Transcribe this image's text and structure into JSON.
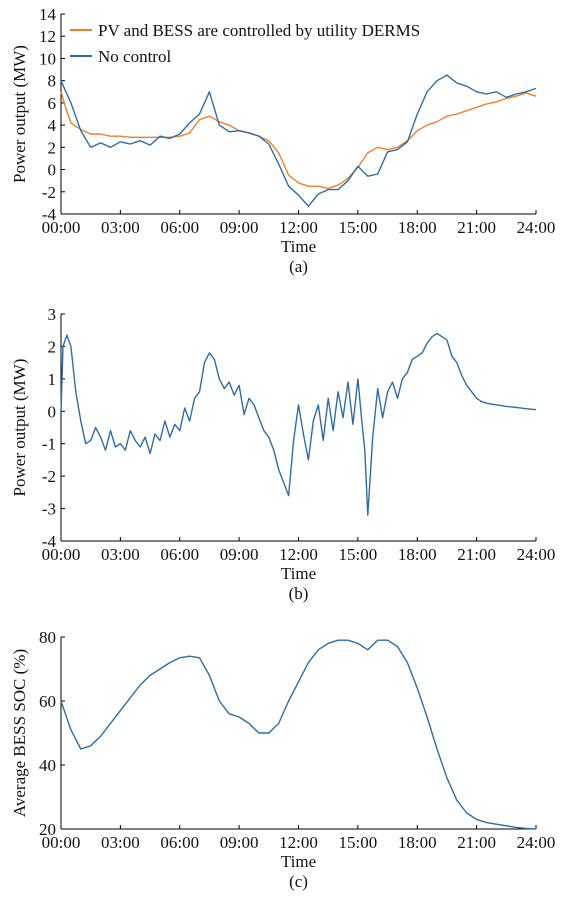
{
  "chart_data": [
    {
      "type": "line",
      "panel_label": "(a)",
      "xlabel": "Time",
      "ylabel": "Power output (MW)",
      "xlim": [
        0,
        24
      ],
      "ylim": [
        -4,
        14
      ],
      "xticks": [
        "00:00",
        "03:00",
        "06:00",
        "09:00",
        "12:00",
        "15:00",
        "18:00",
        "21:00",
        "24:00"
      ],
      "yticks": [
        "-4",
        "-2",
        "0",
        "2",
        "4",
        "6",
        "8",
        "10",
        "12",
        "14"
      ],
      "legend_position": "top-left",
      "grid": false,
      "series": [
        {
          "name": "PV and BESS are controlled by utility DERMS",
          "color": "#ee7f2d",
          "x": [
            0,
            0.25,
            0.5,
            1,
            1.5,
            2,
            2.5,
            3,
            3.5,
            4,
            4.5,
            5,
            5.5,
            6,
            6.5,
            7,
            7.5,
            8,
            8.5,
            9,
            9.5,
            10,
            10.5,
            11,
            11.5,
            12,
            12.5,
            13,
            13.5,
            14,
            14.5,
            15,
            15.5,
            16,
            16.5,
            17,
            17.5,
            18,
            18.5,
            19,
            19.5,
            20,
            20.5,
            21,
            21.5,
            22,
            22.5,
            23,
            23.5,
            24
          ],
          "values": [
            7.0,
            5.5,
            4.2,
            3.6,
            3.2,
            3.2,
            3.0,
            3.0,
            2.9,
            2.9,
            2.9,
            2.9,
            2.9,
            3.0,
            3.3,
            4.5,
            4.8,
            4.3,
            4.0,
            3.5,
            3.3,
            3.0,
            2.6,
            1.5,
            -0.5,
            -1.2,
            -1.5,
            -1.5,
            -1.7,
            -1.4,
            -0.8,
            0.2,
            1.5,
            2.0,
            1.8,
            2.0,
            2.6,
            3.5,
            4.0,
            4.3,
            4.8,
            5.0,
            5.3,
            5.6,
            5.9,
            6.1,
            6.4,
            6.6,
            6.9,
            6.6
          ]
        },
        {
          "name": "No control",
          "color": "#2e6da4",
          "x": [
            0,
            0.25,
            0.5,
            1,
            1.5,
            2,
            2.5,
            3,
            3.5,
            4,
            4.5,
            5,
            5.5,
            6,
            6.5,
            7,
            7.5,
            8,
            8.5,
            9,
            9.5,
            10,
            10.5,
            11,
            11.5,
            12,
            12.5,
            13,
            13.5,
            14,
            14.5,
            15,
            15.5,
            16,
            16.5,
            17,
            17.5,
            18,
            18.5,
            19,
            19.5,
            20,
            20.5,
            21,
            21.5,
            22,
            22.5,
            23,
            23.5,
            24
          ],
          "values": [
            8.0,
            7.0,
            6.0,
            3.5,
            2.0,
            2.4,
            2.0,
            2.5,
            2.3,
            2.6,
            2.2,
            3.0,
            2.8,
            3.2,
            4.2,
            5.0,
            7.0,
            4.0,
            3.4,
            3.5,
            3.3,
            3.0,
            2.3,
            0.5,
            -1.5,
            -2.3,
            -3.3,
            -2.2,
            -1.8,
            -1.8,
            -1.0,
            0.3,
            -0.6,
            -0.4,
            1.6,
            1.8,
            2.5,
            5.0,
            7.0,
            8.0,
            8.5,
            7.8,
            7.5,
            7.0,
            6.8,
            7.0,
            6.5,
            6.8,
            7.0,
            7.3
          ]
        }
      ]
    },
    {
      "type": "line",
      "panel_label": "(b)",
      "xlabel": "Time",
      "ylabel": "Power output (MW)",
      "xlim": [
        0,
        24
      ],
      "ylim": [
        -4,
        3
      ],
      "xticks": [
        "00:00",
        "03:00",
        "06:00",
        "09:00",
        "12:00",
        "15:00",
        "18:00",
        "21:00",
        "24:00"
      ],
      "yticks": [
        "-4",
        "-3",
        "-2",
        "-1",
        "0",
        "1",
        "2",
        "3"
      ],
      "grid": false,
      "series": [
        {
          "color": "#2e6da4",
          "x": [
            0,
            0.1,
            0.3,
            0.5,
            0.75,
            1,
            1.25,
            1.5,
            1.75,
            2,
            2.25,
            2.5,
            2.75,
            3,
            3.25,
            3.5,
            3.75,
            4,
            4.25,
            4.5,
            4.75,
            5,
            5.25,
            5.5,
            5.75,
            6,
            6.25,
            6.5,
            6.75,
            7,
            7.25,
            7.5,
            7.75,
            8,
            8.25,
            8.5,
            8.75,
            9,
            9.25,
            9.5,
            9.75,
            10,
            10.25,
            10.5,
            10.75,
            11,
            11.25,
            11.5,
            11.75,
            12,
            12.25,
            12.5,
            12.75,
            13,
            13.25,
            13.5,
            13.75,
            14,
            14.25,
            14.5,
            14.75,
            15,
            15.2,
            15.35,
            15.5,
            15.75,
            16,
            16.25,
            16.5,
            16.75,
            17,
            17.25,
            17.5,
            17.75,
            18,
            18.25,
            18.5,
            18.75,
            19,
            19.25,
            19.5,
            19.75,
            20,
            20.25,
            20.5,
            20.75,
            21,
            21.25,
            21.5,
            21.75,
            22,
            22.5,
            23,
            23.5,
            24
          ],
          "values": [
            0,
            2.0,
            2.35,
            2.0,
            0.6,
            -0.3,
            -1.0,
            -0.9,
            -0.5,
            -0.8,
            -1.2,
            -0.6,
            -1.1,
            -1.0,
            -1.2,
            -0.6,
            -0.9,
            -1.1,
            -0.8,
            -1.3,
            -0.7,
            -0.9,
            -0.3,
            -0.8,
            -0.4,
            -0.6,
            0.1,
            -0.3,
            0.4,
            0.6,
            1.5,
            1.8,
            1.6,
            1.0,
            0.7,
            0.9,
            0.5,
            0.8,
            -0.1,
            0.4,
            0.2,
            -0.2,
            -0.6,
            -0.8,
            -1.2,
            -1.8,
            -2.2,
            -2.6,
            -0.9,
            0.2,
            -0.7,
            -1.5,
            -0.3,
            0.2,
            -0.9,
            0.4,
            -0.6,
            0.6,
            -0.2,
            0.9,
            -0.4,
            1.0,
            -0.3,
            -1.2,
            -3.2,
            -0.8,
            0.7,
            -0.2,
            0.6,
            0.9,
            0.4,
            1.0,
            1.2,
            1.6,
            1.7,
            1.8,
            2.1,
            2.3,
            2.4,
            2.3,
            2.2,
            1.7,
            1.5,
            1.1,
            0.8,
            0.6,
            0.4,
            0.3,
            0.25,
            0.22,
            0.2,
            0.15,
            0.12,
            0.08,
            0.05
          ]
        }
      ]
    },
    {
      "type": "line",
      "panel_label": "(c)",
      "xlabel": "Time",
      "ylabel": "Average BESS SOC (%)",
      "xlim": [
        0,
        24
      ],
      "ylim": [
        20,
        80
      ],
      "xticks": [
        "00:00",
        "03:00",
        "06:00",
        "09:00",
        "12:00",
        "15:00",
        "18:00",
        "21:00",
        "24:00"
      ],
      "yticks": [
        "20",
        "40",
        "60",
        "80"
      ],
      "grid": false,
      "series": [
        {
          "color": "#2e6da4",
          "x": [
            0,
            0.5,
            1,
            1.5,
            2,
            2.5,
            3,
            3.5,
            4,
            4.5,
            5,
            5.5,
            6,
            6.5,
            7,
            7.5,
            8,
            8.5,
            9,
            9.5,
            10,
            10.5,
            11,
            11.5,
            12,
            12.5,
            13,
            13.5,
            14,
            14.5,
            15,
            15.5,
            16,
            16.5,
            17,
            17.5,
            18,
            18.5,
            19,
            19.5,
            20,
            20.5,
            21,
            21.5,
            22,
            22.5,
            23,
            23.5,
            24
          ],
          "values": [
            60,
            51,
            45,
            46,
            49,
            53,
            57,
            61,
            65,
            68,
            70,
            72,
            73.5,
            74,
            73.5,
            68,
            60,
            56,
            55,
            53,
            50,
            50,
            53,
            60,
            66,
            72,
            76,
            78,
            79,
            79,
            78,
            76,
            79,
            79,
            77,
            72,
            64,
            55,
            45,
            36,
            29,
            25,
            23,
            22,
            21.5,
            21,
            20.5,
            20.2,
            20
          ]
        }
      ]
    }
  ]
}
